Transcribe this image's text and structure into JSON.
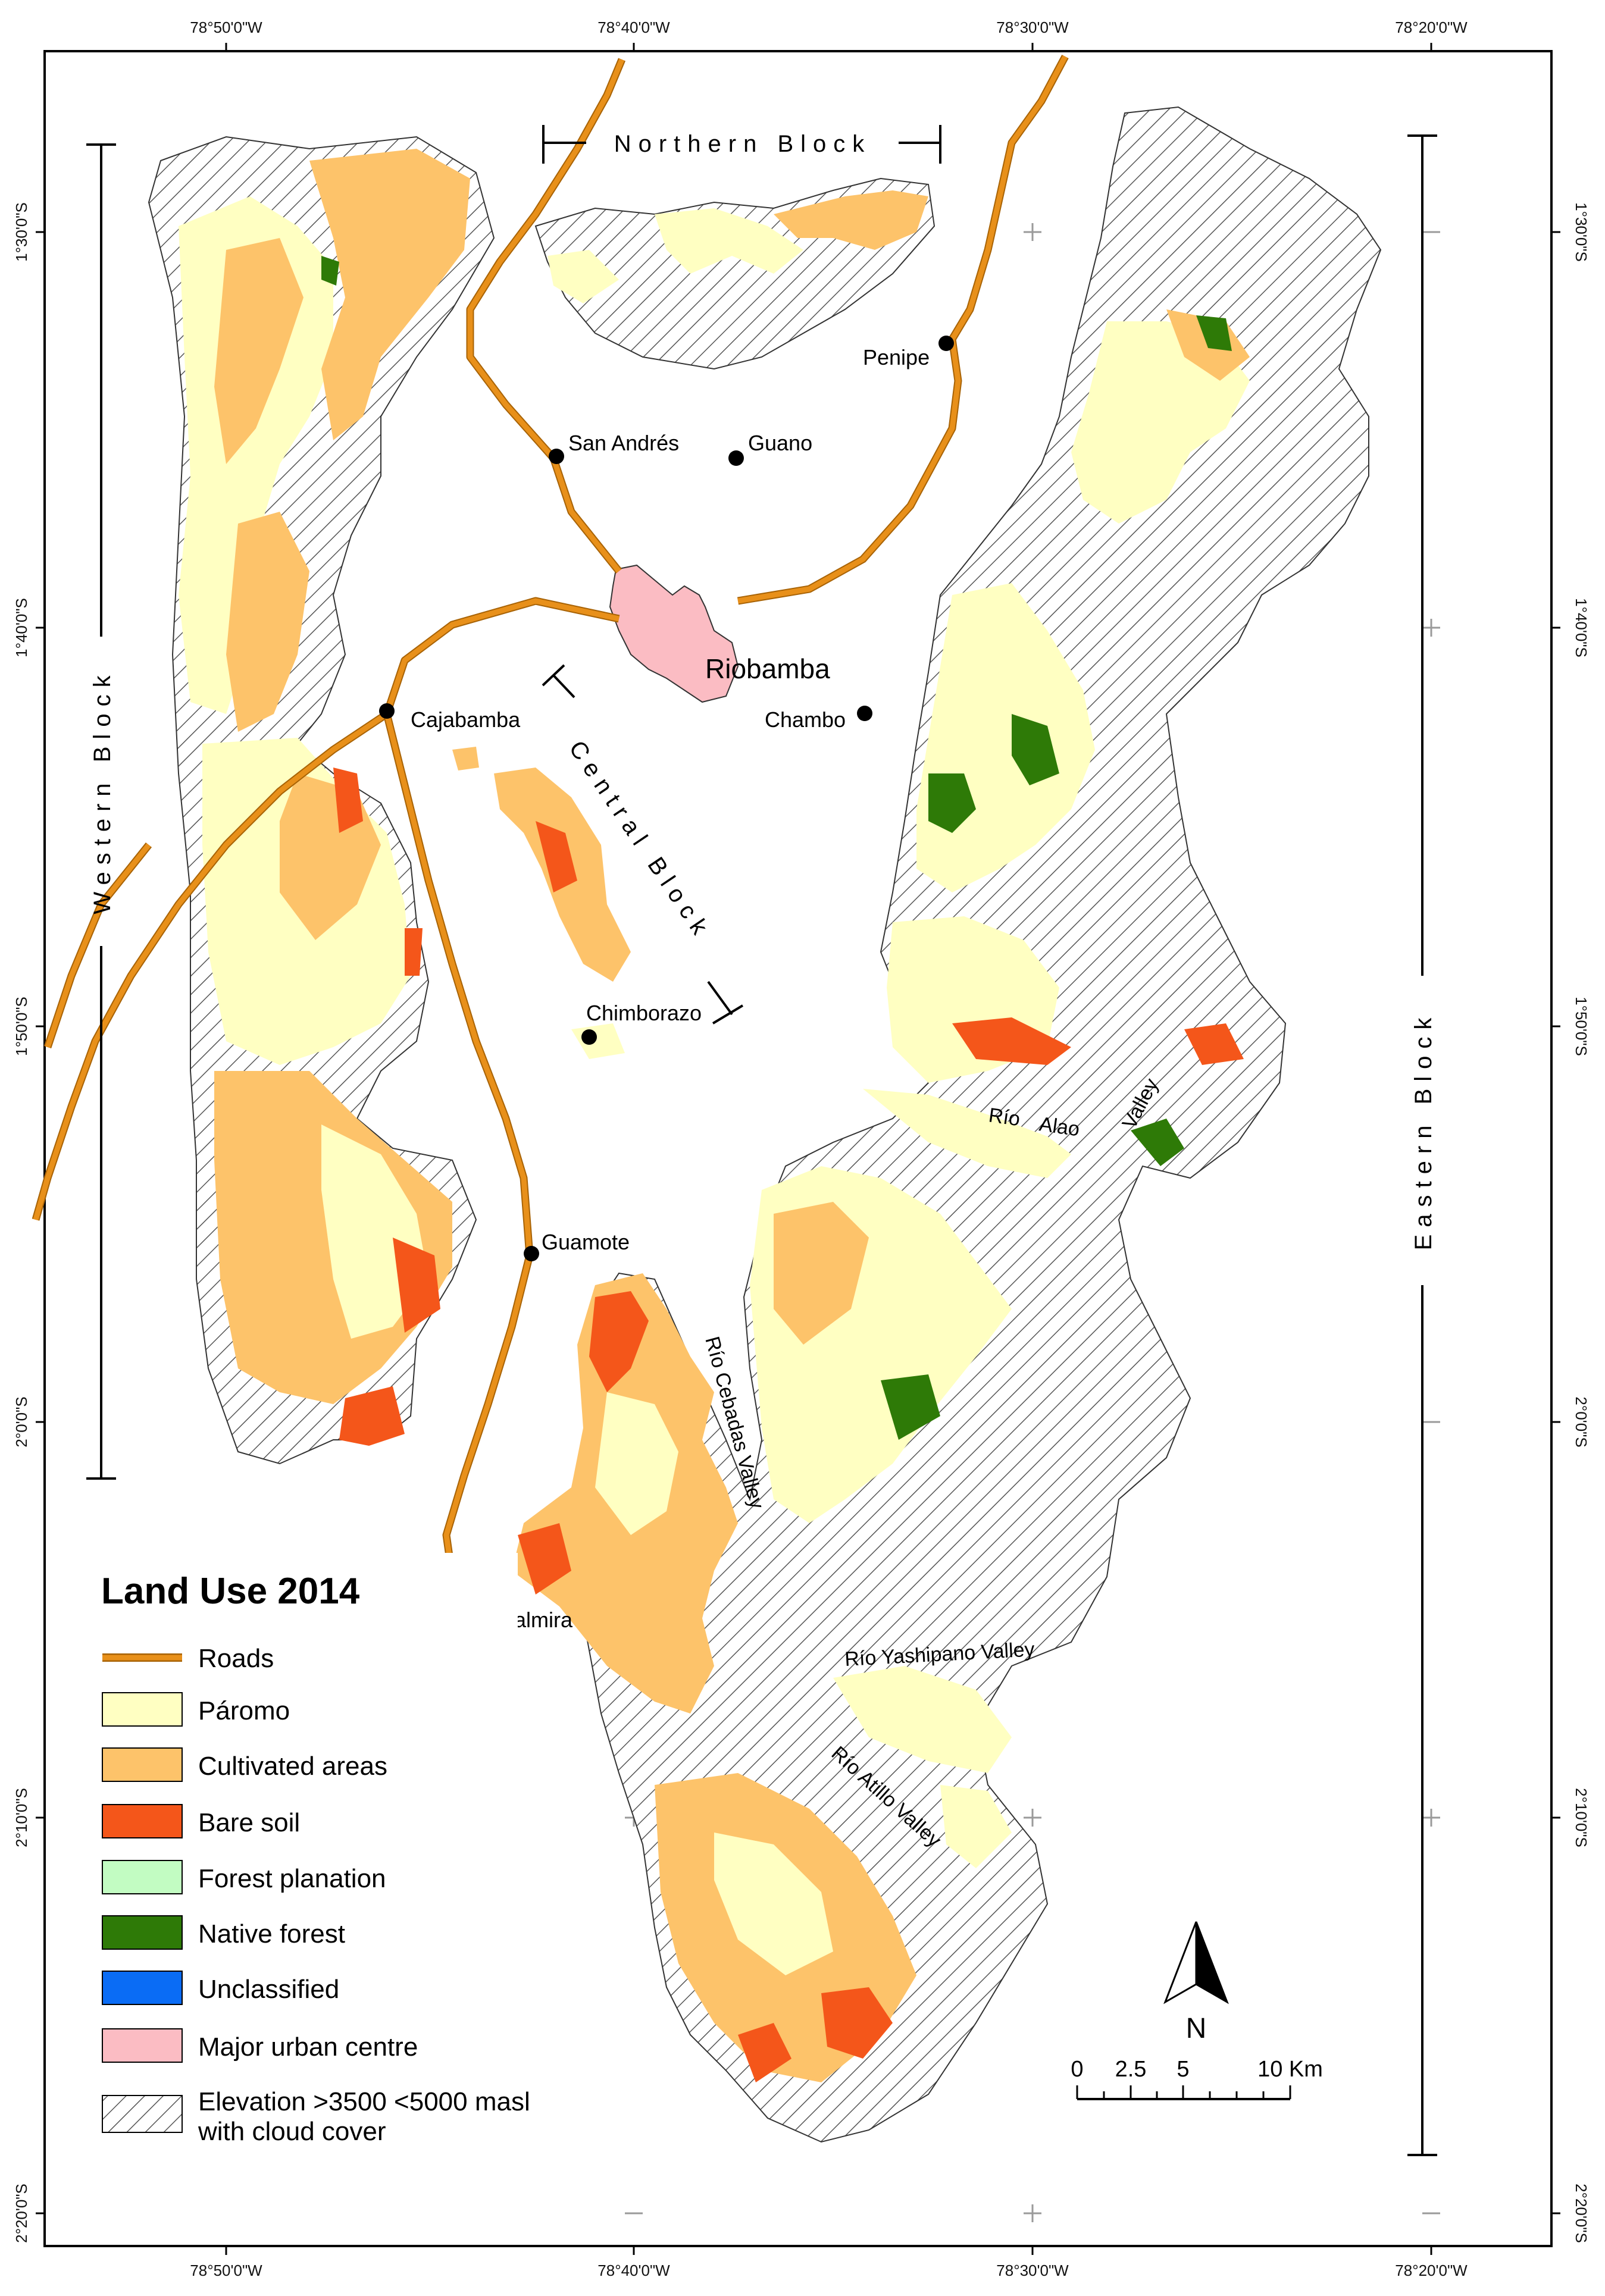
{
  "map": {
    "title": "Land Use 2014",
    "longitude_labels": [
      "78°50'0\"W",
      "78°40'0\"W",
      "78°30'0\"W",
      "78°20'0\"W"
    ],
    "latitude_labels": [
      "1°30'0\"S",
      "1°40'0\"S",
      "1°50'0\"S",
      "2°0'0\"S",
      "2°10'0\"S",
      "2°20'0\"S"
    ],
    "places": {
      "riobamba": "Riobamba",
      "san_andres": "San Andrés",
      "guano": "Guano",
      "penipe": "Penipe",
      "cajabamba": "Cajabamba",
      "chambo": "Chambo",
      "chimborazo": "Chimborazo",
      "guamote": "Guamote",
      "palmira": "Palmira"
    },
    "blocks": {
      "northern": "Northern Block",
      "western": "Western Block",
      "central": "Central Block",
      "eastern": "Eastern Block"
    },
    "valleys": {
      "alao_1": "Río",
      "alao_2": "Alao",
      "alao_3": "Valley",
      "cebadas": "Río Cebadas Valley",
      "yashipano": "Río Yashipano Valley",
      "atillo": "Río Atillo Valley"
    },
    "north_arrow": "N",
    "scale_labels": [
      "0",
      "2.5",
      "5",
      "10 Km"
    ]
  },
  "legend": {
    "roads": "Roads",
    "paromo": "Páromo",
    "cultivated": "Cultivated areas",
    "bare_soil": "Bare soil",
    "forest_plantation": "Forest planation",
    "native_forest": "Native forest",
    "unclassified": "Unclassified",
    "urban": "Major urban centre",
    "elevation_line1": "Elevation >3500 <5000 masl",
    "elevation_line2": "with cloud cover"
  },
  "colors": {
    "roads": "#e8901a",
    "paromo": "#ffffc2",
    "cultivated": "#fdc36a",
    "bare_soil": "#f4561a",
    "forest_plantation": "#c2fcc2",
    "native_forest": "#2e7a07",
    "unclassified": "#0a6cf5",
    "urban": "#fbbcc3"
  }
}
